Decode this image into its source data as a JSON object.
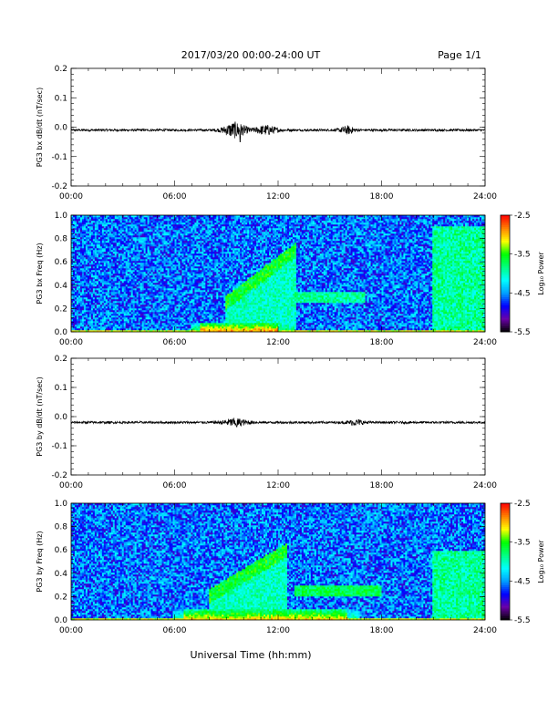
{
  "header": {
    "title": "2017/03/20  00:00-24:00 UT",
    "page": "Page 1/1"
  },
  "xaxis_label": "Universal Time (hh:mm)",
  "colorbar": {
    "label": "Log₁₀ Power",
    "ticks": [
      "-2.5",
      "-3.5",
      "-4.5",
      "-5.5"
    ],
    "range": [
      -5.5,
      -2.5
    ],
    "colors": [
      "#000000",
      "#6a00a8",
      "#0000ff",
      "#00a0ff",
      "#00ffff",
      "#00ff80",
      "#00ff00",
      "#ffff00",
      "#ff8000",
      "#ff0000"
    ]
  },
  "chart_data": [
    {
      "type": "line",
      "ylabel": "PG3 bx dB/dt (nT/sec)",
      "xlim": [
        0,
        24
      ],
      "ylim": [
        -0.2,
        0.2
      ],
      "x_tick_labels": [
        "00:00",
        "06:00",
        "12:00",
        "18:00",
        "24:00"
      ],
      "y_tick_labels": [
        "0.2",
        "0.1",
        "0.0",
        "-0.1",
        "-0.2"
      ],
      "baseline": -0.01,
      "activity_bursts": [
        {
          "center_hr": 9.5,
          "width_hr": 1.3,
          "amp": 0.025
        },
        {
          "center_hr": 11.3,
          "width_hr": 1.2,
          "amp": 0.015
        },
        {
          "center_hr": 16.0,
          "width_hr": 0.8,
          "amp": 0.012
        }
      ],
      "min_dip": {
        "time_hr": 9.8,
        "value": -0.05
      }
    },
    {
      "type": "heatmap",
      "ylabel": "PG3 bx Freq (Hz)",
      "xlim": [
        0,
        24
      ],
      "ylim": [
        0.0,
        1.0
      ],
      "x_tick_labels": [
        "00:00",
        "06:00",
        "12:00",
        "18:00",
        "24:00"
      ],
      "y_tick_labels": [
        "1.0",
        "0.8",
        "0.6",
        "0.4",
        "0.2",
        "0.0"
      ],
      "background_log_power": -4.6,
      "features": [
        {
          "type": "low_freq_band",
          "t_start_hr": 7.5,
          "t_end_hr": 12.0,
          "f_max_hz": 0.08,
          "peak_log_power": -2.8
        },
        {
          "type": "rising_tone",
          "t_start_hr": 9.0,
          "t_end_hr": 13.0,
          "f_start_hz": 0.25,
          "f_end_hz": 0.7,
          "log_power": -3.6
        },
        {
          "type": "band",
          "t_start_hr": 13.0,
          "t_end_hr": 17.0,
          "f_hz": 0.3,
          "log_power": -3.9
        },
        {
          "type": "enhanced_region",
          "t_start_hr": 21.0,
          "t_end_hr": 24.0,
          "f_max_hz": 0.9,
          "log_power": -3.9
        }
      ]
    },
    {
      "type": "line",
      "ylabel": "PG3 by dB/dt (nT/sec)",
      "xlim": [
        0,
        24
      ],
      "ylim": [
        -0.2,
        0.2
      ],
      "x_tick_labels": [
        "00:00",
        "06:00",
        "12:00",
        "18:00",
        "24:00"
      ],
      "y_tick_labels": [
        "0.2",
        "0.1",
        "0.0",
        "-0.1",
        "-0.2"
      ],
      "baseline": -0.02,
      "activity_bursts": [
        {
          "center_hr": 9.5,
          "width_hr": 1.4,
          "amp": 0.012
        },
        {
          "center_hr": 16.5,
          "width_hr": 1.0,
          "amp": 0.008
        }
      ],
      "min_dip": {
        "time_hr": 9.6,
        "value": -0.035
      }
    },
    {
      "type": "heatmap",
      "ylabel": "PG3 by Freq (Hz)",
      "xlim": [
        0,
        24
      ],
      "ylim": [
        0.0,
        1.0
      ],
      "x_tick_labels": [
        "00:00",
        "06:00",
        "12:00",
        "18:00",
        "24:00"
      ],
      "y_tick_labels": [
        "1.0",
        "0.8",
        "0.6",
        "0.4",
        "0.2",
        "0.0"
      ],
      "background_log_power": -4.6,
      "features": [
        {
          "type": "low_freq_band",
          "t_start_hr": 6.5,
          "t_end_hr": 16.0,
          "f_max_hz": 0.1,
          "peak_log_power": -3.0
        },
        {
          "type": "rising_tone",
          "t_start_hr": 8.0,
          "t_end_hr": 12.5,
          "f_start_hz": 0.2,
          "f_end_hz": 0.6,
          "log_power": -3.6
        },
        {
          "type": "band",
          "t_start_hr": 13.0,
          "t_end_hr": 18.0,
          "f_hz": 0.25,
          "log_power": -3.7
        },
        {
          "type": "enhanced_region",
          "t_start_hr": 21.0,
          "t_end_hr": 24.0,
          "f_max_hz": 0.6,
          "log_power": -3.9
        }
      ]
    }
  ]
}
